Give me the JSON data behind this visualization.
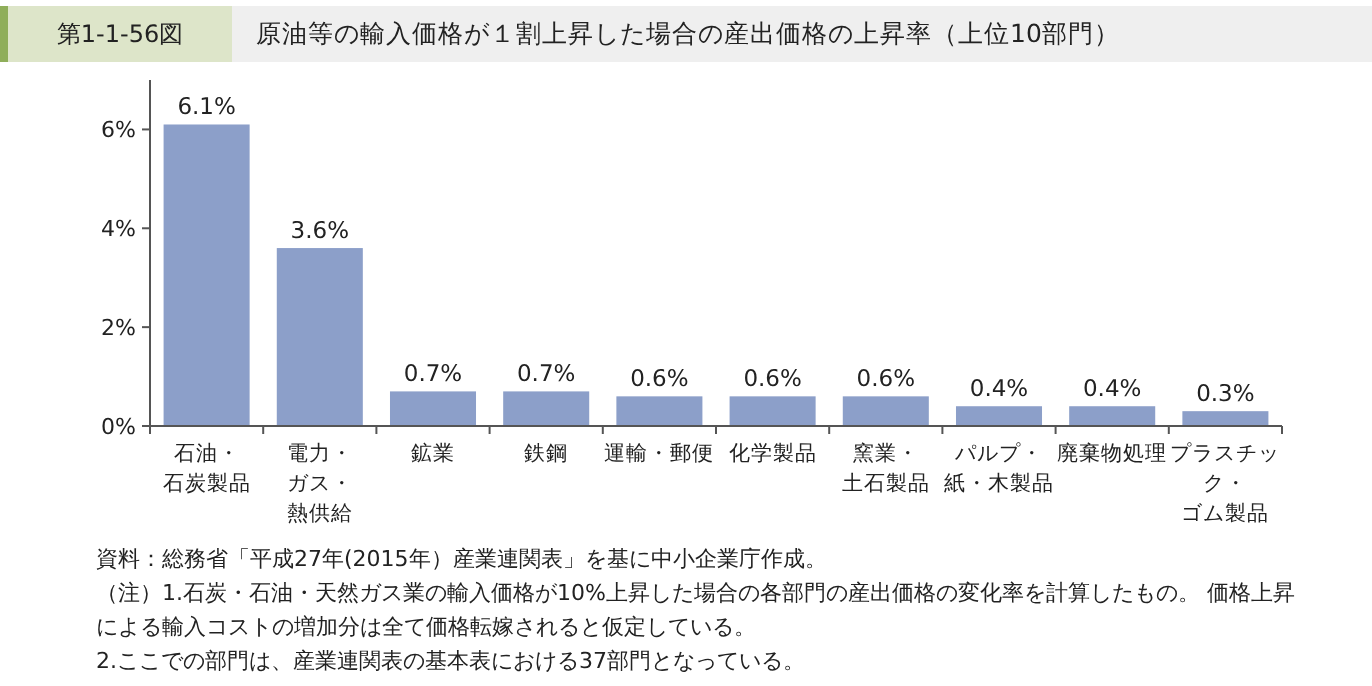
{
  "chart_data": {
    "type": "bar",
    "title": "原油等の輸入価格が１割上昇した場合の産出価格の上昇率（上位10部門）",
    "subtitle": "第1-1-56図",
    "categories": [
      "石油・石炭製品",
      "電力・ガス・熱供給",
      "鉱業",
      "鉄鋼",
      "運輸・郵便",
      "化学製品",
      "窯業・土石製品",
      "パルプ・紙・木製品",
      "廃棄物処理",
      "プラスチック・ゴム製品"
    ],
    "values": [
      6.1,
      3.6,
      0.7,
      0.7,
      0.6,
      0.6,
      0.6,
      0.4,
      0.4,
      0.3
    ],
    "value_labels": [
      "6.1%",
      "3.6%",
      "0.7%",
      "0.7%",
      "0.6%",
      "0.6%",
      "0.6%",
      "0.4%",
      "0.4%",
      "0.3%"
    ],
    "color": "#8c9fc9",
    "ylim": [
      0,
      7
    ],
    "yticks": [
      {
        "value": 0,
        "label": "0%"
      },
      {
        "value": 2,
        "label": "2%"
      },
      {
        "value": 4,
        "label": "4%"
      },
      {
        "value": 6,
        "label": "6%"
      }
    ],
    "grid": false,
    "annotations": [
      "資料：総務省「平成27年(2015年）産業連関表」を基に中小企業庁作成。",
      "（注）1.石炭・石油・天然ガス業の輸入価格が10%上昇した場合の各部門の産出価格の変化率を計算したもの。 価格上昇による輸入コストの増加分は全て価格転嫁されると仮定している。",
      "2.ここでの部門は、産業連関表の基本表における37部門となっている。"
    ]
  }
}
